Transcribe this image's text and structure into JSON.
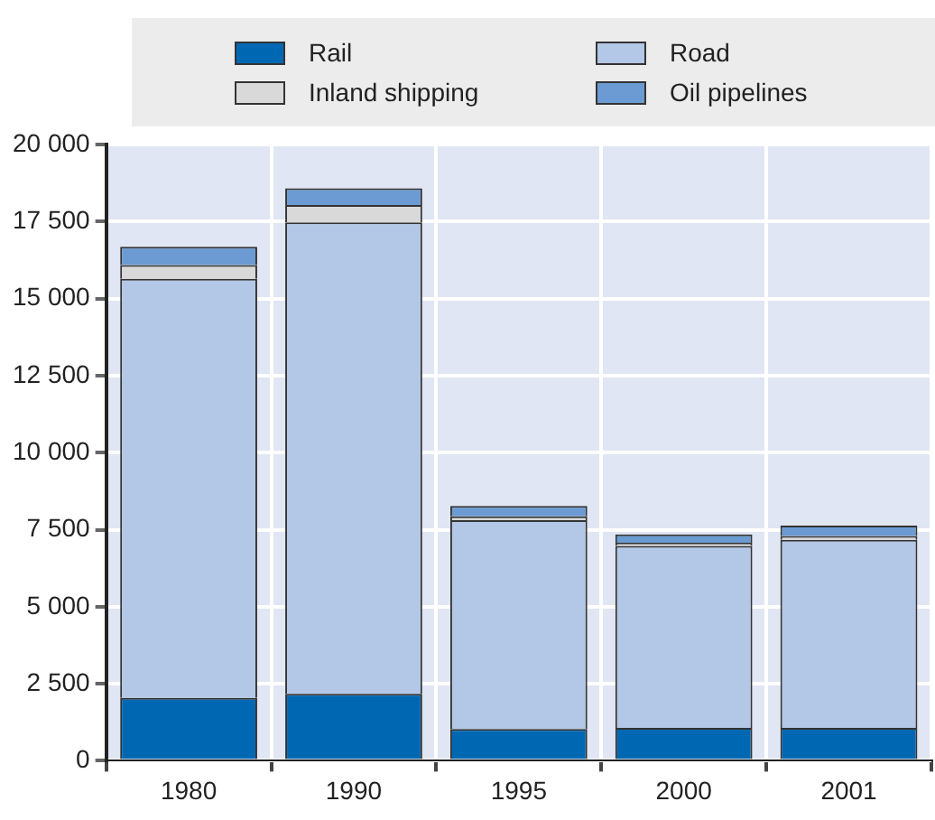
{
  "chart_data": {
    "type": "bar",
    "stacked": true,
    "categories": [
      "1980",
      "1990",
      "1995",
      "2000",
      "2001"
    ],
    "series": [
      {
        "name": "Rail",
        "color": "#0068b3",
        "values": [
          2040,
          2170,
          1030,
          1070,
          1070
        ]
      },
      {
        "name": "Road",
        "color": "#b3c7e6",
        "values": [
          13600,
          15300,
          6780,
          5900,
          6100
        ]
      },
      {
        "name": "Inland shipping",
        "color": "#d9d9d9",
        "values": [
          450,
          570,
          125,
          105,
          125
        ]
      },
      {
        "name": "Oil pipelines",
        "color": "#6b9bd2",
        "values": [
          590,
          540,
          335,
          270,
          340
        ]
      }
    ],
    "ylim": [
      0,
      20000
    ],
    "yticks": [
      0,
      {
        "value": 2500,
        "label": "2 500"
      },
      {
        "value": 5000,
        "label": "5 000"
      },
      {
        "value": 7500,
        "label": "7 500"
      },
      {
        "value": 10000,
        "label": "10 000"
      },
      {
        "value": 12500,
        "label": "12 500"
      },
      {
        "value": 15000,
        "label": "15 000"
      },
      {
        "value": 17500,
        "label": "17 500"
      },
      {
        "value": 20000,
        "label": "20 000"
      }
    ],
    "grid": true,
    "legend": "top"
  }
}
